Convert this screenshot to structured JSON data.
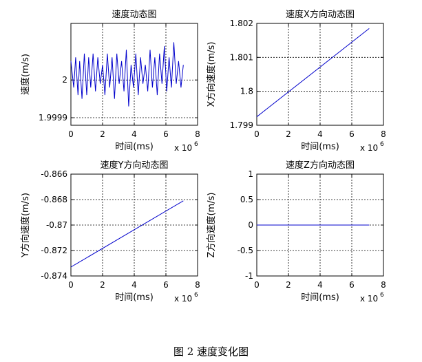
{
  "figure_caption": "图 2 速度变化图",
  "chart_data": [
    {
      "type": "line",
      "title": "速度动态图",
      "xlabel": "时间(ms)",
      "ylabel": "速度(m/s)",
      "x_multiplier": "x 10",
      "x_exponent": "6",
      "xlim": [
        0,
        8
      ],
      "ylim": [
        1.99988,
        2.00015
      ],
      "xticks": [
        "0",
        "2",
        "4",
        "6",
        "8"
      ],
      "yticks": [
        {
          "v": 1.9999,
          "label": "1.9999"
        },
        {
          "v": 2.0,
          "label": "2"
        }
      ],
      "grid": true,
      "line_color": "#0000cc",
      "series": [
        {
          "x": [
            0.0,
            0.18,
            0.3,
            0.45,
            0.55,
            0.7,
            0.85,
            1.0,
            1.12,
            1.25,
            1.4,
            1.55,
            1.7,
            1.85,
            2.0,
            2.15,
            2.3,
            2.45,
            2.6,
            2.75,
            2.9,
            3.05,
            3.2,
            3.35,
            3.5,
            3.65,
            3.8,
            3.95,
            4.1,
            4.25,
            4.4,
            4.55,
            4.7,
            4.85,
            5.0,
            5.15,
            5.3,
            5.45,
            5.6,
            5.75,
            5.9,
            6.05,
            6.2,
            6.35,
            6.5,
            6.65,
            6.8,
            6.95,
            7.1
          ],
          "y": [
            2.00005,
            1.99998,
            2.00006,
            1.99996,
            2.00005,
            1.99995,
            2.00007,
            1.99996,
            2.00006,
            1.99998,
            2.00007,
            1.99997,
            2.00006,
            1.99999,
            2.00004,
            1.99996,
            2.00007,
            1.99998,
            2.00006,
            1.99995,
            2.00007,
            1.99999,
            2.00005,
            1.99997,
            2.00008,
            1.99993,
            2.00004,
            1.99998,
            2.00007,
            1.99996,
            2.00006,
            1.99999,
            2.00004,
            1.99997,
            2.00008,
            1.99998,
            2.00006,
            1.99996,
            2.00007,
            1.99999,
            2.00009,
            1.99997,
            2.00006,
            1.99998,
            2.0001,
            1.99999,
            2.00005,
            1.99998,
            2.00004
          ]
        }
      ]
    },
    {
      "type": "line",
      "title": "速度X方向动态图",
      "xlabel": "时间(ms)",
      "ylabel": "X方向速度(m/s)",
      "x_multiplier": "x 10",
      "x_exponent": "6",
      "xlim": [
        0,
        8
      ],
      "ylim": [
        1.799,
        1.802
      ],
      "xticks": [
        "0",
        "2",
        "4",
        "6",
        "8"
      ],
      "yticks": [
        {
          "v": 1.799,
          "label": "1.799"
        },
        {
          "v": 1.8,
          "label": "1.8"
        },
        {
          "v": 1.801,
          "label": "1.801"
        },
        {
          "v": 1.802,
          "label": "1.802"
        }
      ],
      "grid": true,
      "line_color": "#0000cc",
      "series": [
        {
          "x": [
            0.0,
            7.1
          ],
          "y": [
            1.79925,
            1.80185
          ]
        }
      ]
    },
    {
      "type": "line",
      "title": "速度Y方向动态图",
      "xlabel": "时间(ms)",
      "ylabel": "Y方向速度(m/s)",
      "x_multiplier": "x 10",
      "x_exponent": "6",
      "xlim": [
        0,
        8
      ],
      "ylim": [
        -0.874,
        -0.866
      ],
      "xticks": [
        "0",
        "2",
        "4",
        "6",
        "8"
      ],
      "yticks": [
        {
          "v": -0.874,
          "label": "-0.874"
        },
        {
          "v": -0.872,
          "label": "-0.872"
        },
        {
          "v": -0.87,
          "label": "-0.87"
        },
        {
          "v": -0.868,
          "label": "-0.868"
        },
        {
          "v": -0.866,
          "label": "-0.866"
        }
      ],
      "grid": true,
      "line_color": "#0000cc",
      "series": [
        {
          "x": [
            0.0,
            7.1
          ],
          "y": [
            -0.8733,
            -0.8681
          ]
        }
      ]
    },
    {
      "type": "line",
      "title": "速度Z方向动态图",
      "xlabel": "时间(ms)",
      "ylabel": "Z方向速度(m/s)",
      "x_multiplier": "x 10",
      "x_exponent": "6",
      "xlim": [
        0,
        8
      ],
      "ylim": [
        -1,
        1
      ],
      "xticks": [
        "0",
        "2",
        "4",
        "6",
        "8"
      ],
      "yticks": [
        {
          "v": -1,
          "label": "-1"
        },
        {
          "v": -0.5,
          "label": "-0.5"
        },
        {
          "v": 0,
          "label": "0"
        },
        {
          "v": 0.5,
          "label": "0.5"
        },
        {
          "v": 1,
          "label": "1"
        }
      ],
      "grid": true,
      "line_color": "#0000cc",
      "series": [
        {
          "x": [
            0.0,
            7.1
          ],
          "y": [
            0,
            0
          ]
        }
      ]
    }
  ]
}
